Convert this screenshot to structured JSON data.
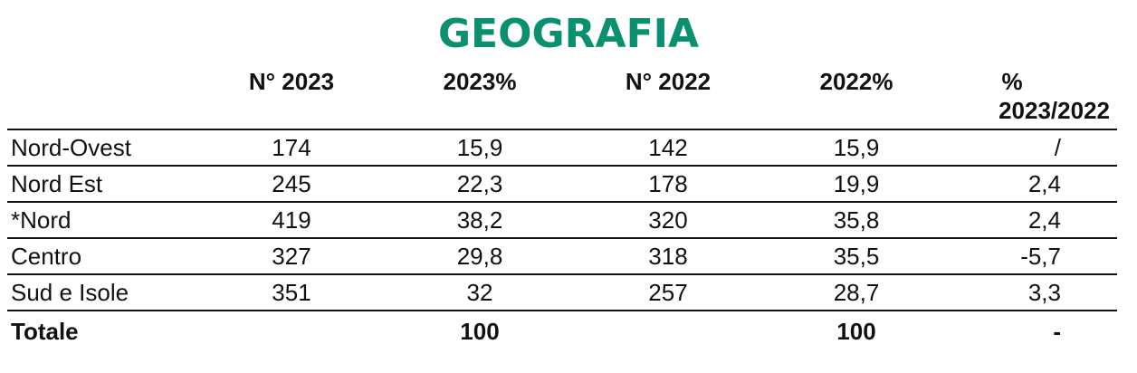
{
  "chart_data": {
    "type": "table",
    "title": "GEOGRAFIA",
    "columns": [
      "",
      "N° 2023",
      "2023%",
      "N° 2022",
      "2022%",
      "% 2023/2022"
    ],
    "column_header_lines": {
      "c5_line1": "%",
      "c5_line2": "2023/2022"
    },
    "rows": [
      {
        "label": "Nord-Ovest",
        "n2023": "174",
        "p2023": "15,9",
        "n2022": "142",
        "p2022": "15,9",
        "var": "/"
      },
      {
        "label": "Nord Est",
        "n2023": "245",
        "p2023": "22,3",
        "n2022": "178",
        "p2022": "19,9",
        "var": "2,4"
      },
      {
        "label": "*Nord",
        "n2023": "419",
        "p2023": "38,2",
        "n2022": "320",
        "p2022": "35,8",
        "var": "2,4"
      },
      {
        "label": "Centro",
        "n2023": "327",
        "p2023": "29,8",
        "n2022": "318",
        "p2022": "35,5",
        "var": "-5,7"
      },
      {
        "label": "Sud e Isole",
        "n2023": "351",
        "p2023": "32",
        "n2022": "257",
        "p2022": "28,7",
        "var": "3,3"
      }
    ],
    "total": {
      "label": "Totale",
      "n2023": "",
      "p2023": "100",
      "n2022": "",
      "p2022": "100",
      "var": "-"
    }
  },
  "colors": {
    "title": "#0a8f6f",
    "text": "#111111",
    "rule": "#111111"
  }
}
